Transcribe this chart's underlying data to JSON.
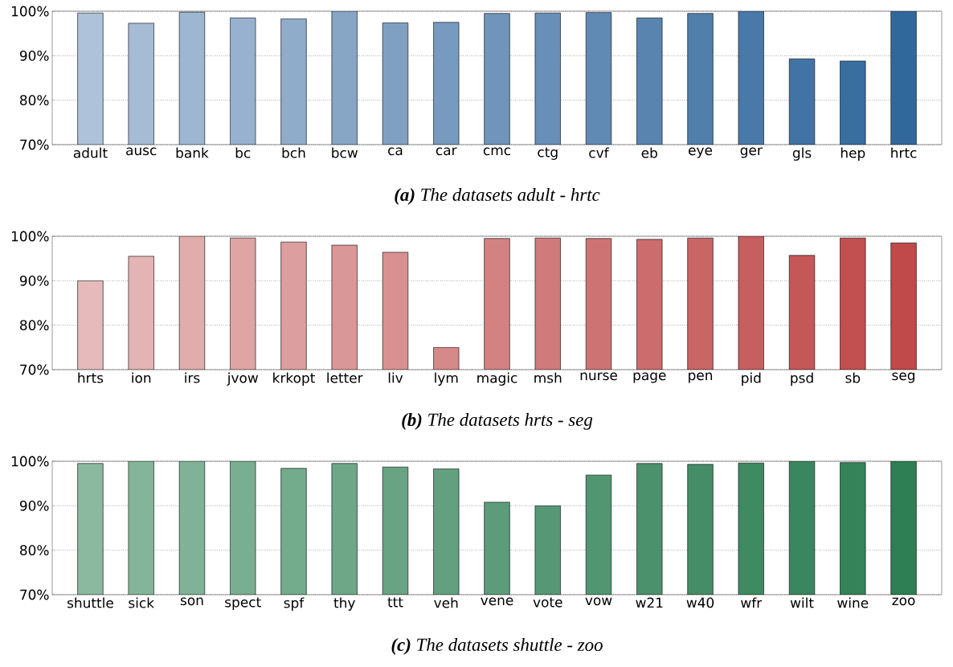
{
  "chart_data": [
    {
      "type": "bar",
      "title": "**(a)** The datasets adult - hrtc",
      "categories": [
        "adult",
        "ausc",
        "bank",
        "bc",
        "bch",
        "bcw",
        "ca",
        "car",
        "cmc",
        "ctg",
        "cvf",
        "eb",
        "eye",
        "ger",
        "gls",
        "hep",
        "hrtc"
      ],
      "values": [
        99.6,
        97.3,
        99.8,
        98.5,
        98.3,
        100,
        97.4,
        97.5,
        99.5,
        99.6,
        99.7,
        98.5,
        99.5,
        100,
        89.3,
        88.8,
        100
      ],
      "colors": [
        "#aec2d9",
        "#a6bcd5",
        "#9eb7d1",
        "#97b1ce",
        "#8facca",
        "#87a6c6",
        "#7fa0c2",
        "#779bbe",
        "#6f95bb",
        "#688fb7",
        "#608ab3",
        "#5884af",
        "#507fab",
        "#4879a8",
        "#4173a4",
        "#396ea0",
        "#31689c"
      ],
      "ylim": [
        70,
        100
      ],
      "yticks": [
        {
          "value": 70,
          "label": "70%"
        },
        {
          "value": 80,
          "label": "80%"
        },
        {
          "value": 90,
          "label": "90%"
        },
        {
          "value": 100,
          "label": "100%"
        }
      ],
      "grid": "y"
    },
    {
      "type": "bar",
      "title": "**(b)** The datasets hrts - seg",
      "categories": [
        "hrts",
        "ion",
        "irs",
        "jvow",
        "krkopt",
        "letter",
        "liv",
        "lym",
        "magic",
        "msh",
        "nurse",
        "page",
        "pen",
        "pid",
        "psd",
        "sb",
        "seg"
      ],
      "values": [
        90,
        95.5,
        100,
        99.6,
        98.7,
        98.0,
        96.4,
        75,
        99.5,
        99.6,
        99.5,
        99.3,
        99.6,
        100,
        95.7,
        99.6,
        98.5
      ],
      "colors": [
        "#e6baba",
        "#e4b3b3",
        "#e1acac",
        "#dfa5a5",
        "#dc9e9e",
        "#da9797",
        "#d89090",
        "#d58989",
        "#d38282",
        "#d17a7b",
        "#ce7374",
        "#cc6c6d",
        "#ca6566",
        "#c75e5f",
        "#c55758",
        "#c25051",
        "#c0494a"
      ],
      "ylim": [
        70,
        100
      ],
      "yticks": [
        {
          "value": 70,
          "label": "70%"
        },
        {
          "value": 80,
          "label": "80%"
        },
        {
          "value": 90,
          "label": "90%"
        },
        {
          "value": 100,
          "label": "100%"
        }
      ],
      "grid": "y"
    },
    {
      "type": "bar",
      "title": "**(c)** The datasets shuttle - zoo",
      "categories": [
        "shuttle",
        "sick",
        "son",
        "spect",
        "spf",
        "thy",
        "ttt",
        "veh",
        "vene",
        "vote",
        "vow",
        "w21",
        "w40",
        "wfr",
        "wilt",
        "wine",
        "zoo"
      ],
      "values": [
        99.5,
        100,
        100,
        100,
        98.4,
        99.5,
        98.7,
        98.3,
        90.8,
        90,
        96.9,
        99.5,
        99.3,
        99.6,
        100,
        99.7,
        100
      ],
      "colors": [
        "#8ab9a0",
        "#84b59b",
        "#7fb297",
        "#79ae92",
        "#73ab8d",
        "#6da788",
        "#68a384",
        "#62a07f",
        "#5c9c7a",
        "#569875",
        "#519571",
        "#4b916c",
        "#458d67",
        "#3f8a62",
        "#3a865e",
        "#348359",
        "#2e7f54"
      ],
      "ylim": [
        70,
        100
      ],
      "yticks": [
        {
          "value": 70,
          "label": "70%"
        },
        {
          "value": 80,
          "label": "80%"
        },
        {
          "value": 90,
          "label": "90%"
        },
        {
          "value": 100,
          "label": "100%"
        }
      ],
      "grid": "y"
    }
  ]
}
